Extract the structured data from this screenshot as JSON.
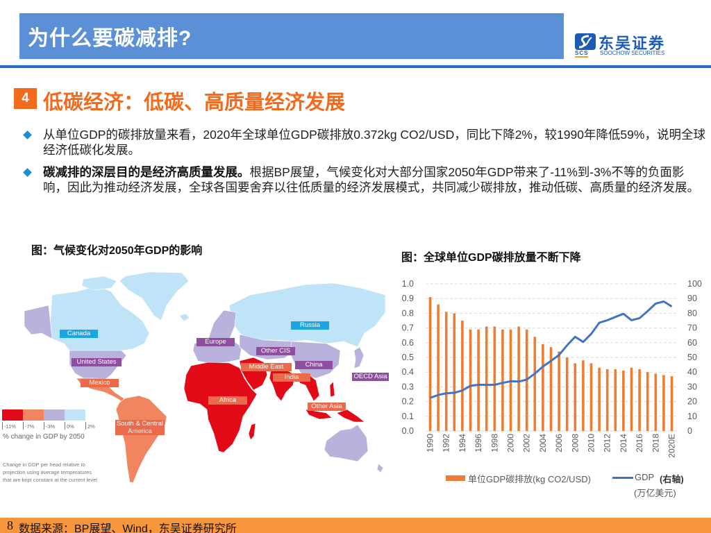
{
  "header": {
    "title": "为什么要碳减排?"
  },
  "logo": {
    "name_cn": "东吴证券",
    "abbr": "SCS",
    "name_en": "SOOCHOW SECURITIES"
  },
  "section": {
    "number": "4",
    "title": "低碳经济：低碳、高质量经济发展"
  },
  "bullets": [
    {
      "bold": "",
      "text": "从单位GDP的碳排放量来看，2020年全球单位GDP碳排放0.372kg CO2/USD，同比下降2%，较1990年降低59%，说明全球经济低碳化发展。"
    },
    {
      "bold": "碳减排的深层目的是经济高质量发展。",
      "text": "根据BP展望，气候变化对大部分国家2050年GDP带来了-11%到-3%不等的负面影响，因此为推动经济发展，全球各国要舍弃以往低质量的经济发展模式，共同减少碳排放，推动低碳、高质量的经济发展。"
    }
  ],
  "figures": {
    "left_title": "图：气候变化对2050年GDP的影响",
    "right_title": "图：全球单位GDP碳排放量不断下降"
  },
  "map": {
    "labels": [
      {
        "text": "Canada",
        "category": "0% to 2%"
      },
      {
        "text": "United States",
        "category": "-3% to 0%"
      },
      {
        "text": "Mexico",
        "category": "-7% to -3%"
      },
      {
        "text": "Europe",
        "category": "-3% to 0%"
      },
      {
        "text": "Russia",
        "category": "0% to 2%"
      },
      {
        "text": "Other CIS",
        "category": "-3% to 0%"
      },
      {
        "text": "Middle East",
        "category": "-11% to -7%"
      },
      {
        "text": "China",
        "category": "-3% to 0%"
      },
      {
        "text": "India",
        "category": "-11% to -7%"
      },
      {
        "text": "OECD Asia",
        "category": "-3% to 0%"
      },
      {
        "text": "Africa",
        "category": "-11% to -7%"
      },
      {
        "text": "Other Asia",
        "category": "-11% to -7%"
      },
      {
        "text": "South & Central",
        "category": "-7% to -3%"
      },
      {
        "text": "America",
        "category": "-7% to -3%"
      }
    ],
    "legend": {
      "colors": [
        "#e20a17",
        "#f08560",
        "#b9b2dd",
        "#bfe3f7"
      ],
      "ticks": [
        "-11%",
        "-7%",
        "-3%",
        "0%",
        "2%"
      ],
      "caption": "% change in GDP by 2050"
    },
    "note": [
      "Change in GDP per head relative to",
      "projection using average temperatures",
      "that are kept constant at the current level"
    ]
  },
  "chart_legend": {
    "bar_label": "单位GDP碳排放(kg CO2/USD)",
    "line_label": "GDP",
    "line_axis_note": "(右轴)",
    "line_unit": "(万亿美元)"
  },
  "footer": {
    "page": "8",
    "source": "数据来源：BP展望、Wind，东吴证券研究所"
  },
  "chart_data": {
    "type": "bar+line",
    "title": "图：全球单位GDP碳排放量不断下降",
    "categories": [
      "1990",
      "1991",
      "1992",
      "1993",
      "1994",
      "1995",
      "1996",
      "1997",
      "1998",
      "1999",
      "2000",
      "2001",
      "2002",
      "2003",
      "2004",
      "2005",
      "2006",
      "2007",
      "2008",
      "2009",
      "2010",
      "2011",
      "2012",
      "2013",
      "2014",
      "2015",
      "2016",
      "2017",
      "2018",
      "2019",
      "2020E"
    ],
    "x_tick_labels": [
      "1990",
      "1992",
      "1994",
      "1996",
      "1998",
      "2000",
      "2002",
      "2004",
      "2006",
      "2008",
      "2010",
      "2012",
      "2014",
      "2016",
      "2018",
      "2020E"
    ],
    "series": [
      {
        "name": "单位GDP碳排放(kg CO2/USD)",
        "type": "bar",
        "axis": "left",
        "color": "#ed7d31",
        "values": [
          0.91,
          0.86,
          0.81,
          0.8,
          0.75,
          0.69,
          0.69,
          0.71,
          0.71,
          0.69,
          0.69,
          0.71,
          0.69,
          0.64,
          0.59,
          0.57,
          0.54,
          0.5,
          0.46,
          0.48,
          0.46,
          0.43,
          0.42,
          0.42,
          0.41,
          0.43,
          0.42,
          0.4,
          0.39,
          0.38,
          0.372
        ]
      },
      {
        "name": "GDP (右轴)(万亿美元)",
        "type": "line",
        "axis": "right",
        "color": "#4472c4",
        "values": [
          22.5,
          24.5,
          25.6,
          26.0,
          27.5,
          30.7,
          31.4,
          31.3,
          31.4,
          32.7,
          33.8,
          33.6,
          34.9,
          39.0,
          43.8,
          47.6,
          51.6,
          58.2,
          64.0,
          60.5,
          66.0,
          73.6,
          75.3,
          77.5,
          79.6,
          75.3,
          76.7,
          81.4,
          86.6,
          88.0,
          84.6
        ]
      }
    ],
    "y_left": {
      "range": [
        0,
        1.0
      ],
      "ticks": [
        "0.0",
        "0.1",
        "0.2",
        "0.3",
        "0.4",
        "0.5",
        "0.6",
        "0.7",
        "0.8",
        "0.9",
        "1.0"
      ]
    },
    "y_right": {
      "range": [
        0,
        100
      ],
      "ticks": [
        "0",
        "10",
        "20",
        "30",
        "40",
        "50",
        "60",
        "70",
        "80",
        "90",
        "100"
      ]
    },
    "xlabel": "",
    "ylabel": "",
    "grid": true,
    "legend_position": "bottom"
  }
}
